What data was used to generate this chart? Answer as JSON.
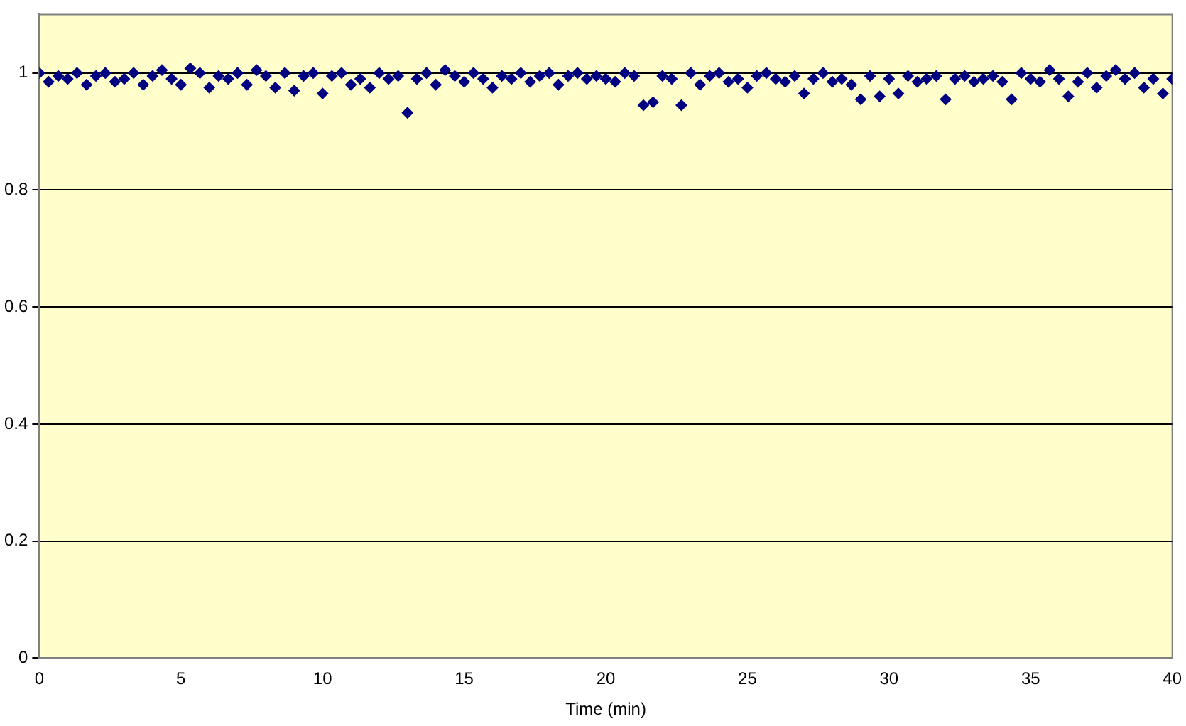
{
  "chart_data": {
    "type": "scatter",
    "xlabel": "Time (min)",
    "marker": "diamond",
    "grid": "y",
    "legend": false,
    "xlim": [
      0,
      40
    ],
    "xticks": [
      0,
      5,
      10,
      15,
      20,
      25,
      30,
      35,
      40
    ],
    "ylim": [
      0,
      1.1
    ],
    "yticks": [
      0,
      0.2,
      0.4,
      0.6,
      0.8,
      1
    ],
    "series": [
      {
        "color": "#000080",
        "x": [
          0,
          0.33,
          0.67,
          1,
          1.33,
          1.67,
          2,
          2.33,
          2.67,
          3,
          3.33,
          3.67,
          4,
          4.33,
          4.67,
          5,
          5.33,
          5.67,
          6,
          6.33,
          6.67,
          7,
          7.33,
          7.67,
          8,
          8.33,
          8.67,
          9,
          9.33,
          9.67,
          10,
          10.33,
          10.67,
          11,
          11.33,
          11.67,
          12,
          12.33,
          12.67,
          13,
          13.33,
          13.67,
          14,
          14.33,
          14.67,
          15,
          15.33,
          15.67,
          16,
          16.33,
          16.67,
          17,
          17.33,
          17.67,
          18,
          18.33,
          18.67,
          19,
          19.33,
          19.67,
          20,
          20.33,
          20.67,
          21,
          21.33,
          21.67,
          22,
          22.33,
          22.67,
          23,
          23.33,
          23.67,
          24,
          24.33,
          24.67,
          25,
          25.33,
          25.67,
          26,
          26.33,
          26.67,
          27,
          27.33,
          27.67,
          28,
          28.33,
          28.67,
          29,
          29.33,
          29.67,
          30,
          30.33,
          30.67,
          31,
          31.33,
          31.67,
          32,
          32.33,
          32.67,
          33,
          33.33,
          33.67,
          34,
          34.33,
          34.67,
          35,
          35.33,
          35.67,
          36,
          36.33,
          36.67,
          37,
          37.33,
          37.67,
          38,
          38.33,
          38.67,
          39,
          39.33,
          39.67,
          40
        ],
        "values": [
          1.0,
          0.985,
          0.995,
          0.99,
          1.0,
          0.98,
          0.995,
          1.0,
          0.985,
          0.99,
          1.0,
          0.98,
          0.995,
          1.005,
          0.99,
          0.98,
          1.008,
          1.0,
          0.975,
          0.995,
          0.99,
          1.0,
          0.98,
          1.005,
          0.995,
          0.975,
          1.0,
          0.97,
          0.995,
          1.0,
          0.965,
          0.995,
          1.0,
          0.98,
          0.99,
          0.975,
          1.0,
          0.99,
          0.995,
          0.932,
          0.99,
          1.0,
          0.98,
          1.005,
          0.995,
          0.985,
          1.0,
          0.99,
          0.975,
          0.995,
          0.99,
          1.0,
          0.985,
          0.995,
          1.0,
          0.98,
          0.995,
          1.0,
          0.99,
          0.995,
          0.99,
          0.985,
          1.0,
          0.995,
          0.945,
          0.95,
          0.995,
          0.99,
          0.945,
          1.0,
          0.98,
          0.995,
          1.0,
          0.985,
          0.99,
          0.975,
          0.995,
          1.0,
          0.99,
          0.985,
          0.995,
          0.965,
          0.99,
          1.0,
          0.985,
          0.99,
          0.98,
          0.955,
          0.995,
          0.96,
          0.99,
          0.965,
          0.995,
          0.985,
          0.99,
          0.995,
          0.955,
          0.99,
          0.995,
          0.985,
          0.99,
          0.995,
          0.985,
          0.955,
          1.0,
          0.99,
          0.985,
          1.005,
          0.99,
          0.96,
          0.985,
          1.0,
          0.975,
          0.995,
          1.005,
          0.99,
          1.0,
          0.975,
          0.99,
          0.965,
          0.99
        ]
      }
    ]
  }
}
